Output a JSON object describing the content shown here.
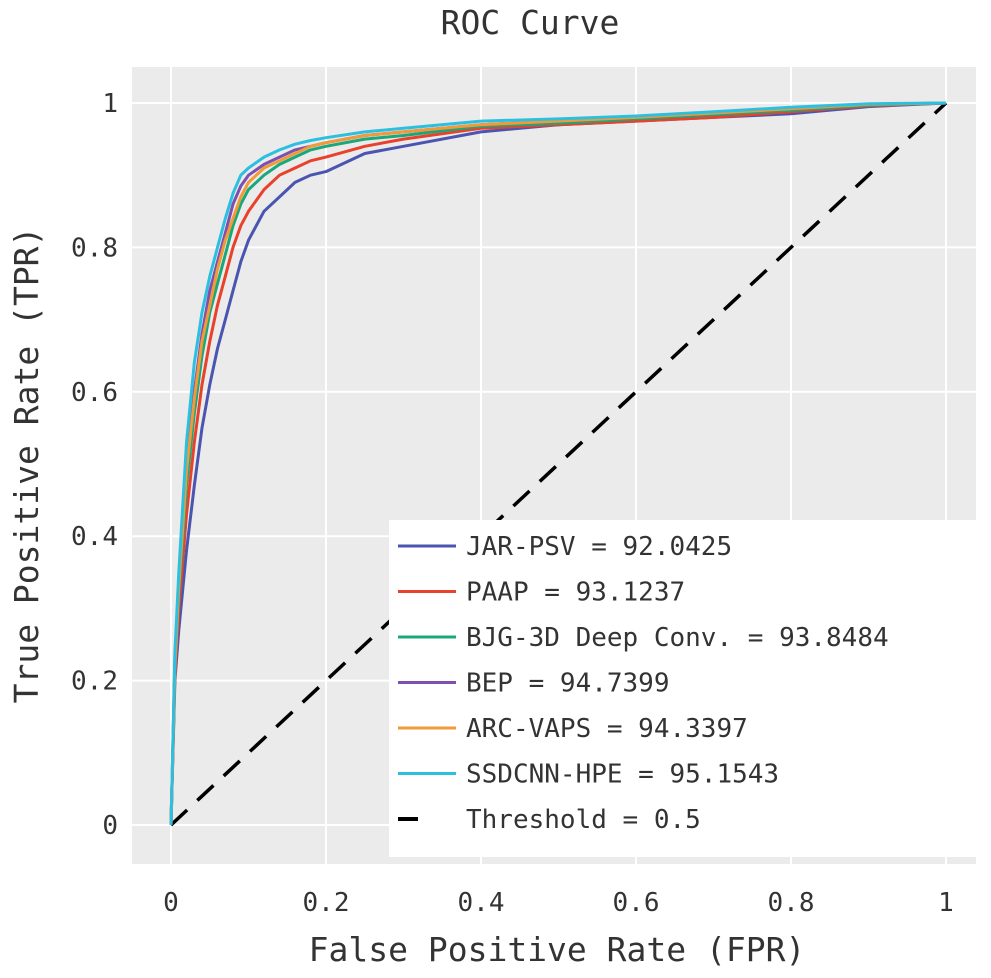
{
  "chart_data": {
    "type": "line",
    "title": "ROC Curve",
    "xlabel": "False Positive Rate (FPR)",
    "ylabel": "True Positive Rate (TPR)",
    "xlim": [
      0,
      1
    ],
    "ylim": [
      0,
      1
    ],
    "x_ticks": [
      "0",
      "0.2",
      "0.4",
      "0.6",
      "0.8",
      "1"
    ],
    "y_ticks": [
      "0",
      "0.2",
      "0.4",
      "0.6",
      "0.8",
      "1"
    ],
    "grid": true,
    "legend_position": "bottom-right",
    "series": [
      {
        "name": "JAR-PSV",
        "auc_label": "JAR-PSV = 92.0425",
        "color": "#4a55b0",
        "x": [
          0,
          0.005,
          0.01,
          0.02,
          0.03,
          0.04,
          0.05,
          0.06,
          0.07,
          0.08,
          0.09,
          0.1,
          0.12,
          0.14,
          0.16,
          0.18,
          0.2,
          0.25,
          0.3,
          0.4,
          0.5,
          0.6,
          0.7,
          0.8,
          0.9,
          1
        ],
        "y": [
          0,
          0.2,
          0.27,
          0.38,
          0.47,
          0.55,
          0.61,
          0.66,
          0.7,
          0.74,
          0.78,
          0.81,
          0.85,
          0.87,
          0.89,
          0.9,
          0.905,
          0.93,
          0.94,
          0.96,
          0.97,
          0.975,
          0.98,
          0.985,
          0.995,
          1
        ]
      },
      {
        "name": "PAAP",
        "auc_label": "PAAP = 93.1237",
        "color": "#e8412c",
        "x": [
          0,
          0.005,
          0.01,
          0.02,
          0.03,
          0.04,
          0.05,
          0.06,
          0.07,
          0.08,
          0.09,
          0.1,
          0.12,
          0.14,
          0.16,
          0.18,
          0.2,
          0.25,
          0.3,
          0.4,
          0.5,
          0.6,
          0.7,
          0.8,
          0.9,
          1
        ],
        "y": [
          0,
          0.21,
          0.3,
          0.43,
          0.53,
          0.61,
          0.67,
          0.72,
          0.76,
          0.8,
          0.83,
          0.85,
          0.88,
          0.9,
          0.91,
          0.92,
          0.925,
          0.94,
          0.95,
          0.965,
          0.97,
          0.975,
          0.98,
          0.988,
          0.996,
          1
        ]
      },
      {
        "name": "BJG-3D Deep Conv.",
        "auc_label": "BJG-3D Deep Conv. = 93.8484",
        "color": "#1aa87a",
        "x": [
          0,
          0.005,
          0.01,
          0.02,
          0.03,
          0.04,
          0.05,
          0.06,
          0.07,
          0.08,
          0.09,
          0.1,
          0.12,
          0.14,
          0.16,
          0.18,
          0.2,
          0.25,
          0.3,
          0.4,
          0.5,
          0.6,
          0.7,
          0.8,
          0.9,
          1
        ],
        "y": [
          0,
          0.22,
          0.32,
          0.47,
          0.57,
          0.65,
          0.71,
          0.75,
          0.79,
          0.83,
          0.86,
          0.88,
          0.9,
          0.915,
          0.925,
          0.935,
          0.94,
          0.95,
          0.955,
          0.968,
          0.972,
          0.978,
          0.984,
          0.99,
          0.997,
          1
        ]
      },
      {
        "name": "BEP",
        "auc_label": "BEP = 94.7399",
        "color": "#7d4fb0",
        "x": [
          0,
          0.005,
          0.01,
          0.02,
          0.03,
          0.04,
          0.05,
          0.06,
          0.07,
          0.08,
          0.09,
          0.1,
          0.12,
          0.14,
          0.16,
          0.18,
          0.2,
          0.25,
          0.3,
          0.4,
          0.5,
          0.6,
          0.7,
          0.8,
          0.9,
          1
        ],
        "y": [
          0,
          0.23,
          0.33,
          0.5,
          0.6,
          0.68,
          0.74,
          0.78,
          0.82,
          0.86,
          0.885,
          0.9,
          0.915,
          0.925,
          0.935,
          0.94,
          0.945,
          0.955,
          0.96,
          0.97,
          0.975,
          0.98,
          0.986,
          0.992,
          0.998,
          1
        ]
      },
      {
        "name": "ARC-VAPS",
        "auc_label": "ARC-VAPS = 94.3397",
        "color": "#f29a38",
        "x": [
          0,
          0.005,
          0.01,
          0.02,
          0.03,
          0.04,
          0.05,
          0.06,
          0.07,
          0.08,
          0.09,
          0.1,
          0.12,
          0.14,
          0.16,
          0.18,
          0.2,
          0.25,
          0.3,
          0.4,
          0.5,
          0.6,
          0.7,
          0.8,
          0.9,
          1
        ],
        "y": [
          0,
          0.22,
          0.33,
          0.49,
          0.59,
          0.67,
          0.72,
          0.77,
          0.81,
          0.84,
          0.87,
          0.89,
          0.91,
          0.92,
          0.93,
          0.94,
          0.945,
          0.955,
          0.96,
          0.97,
          0.975,
          0.98,
          0.986,
          0.992,
          0.998,
          1
        ]
      },
      {
        "name": "SSDCNN-HPE",
        "auc_label": "SSDCNN-HPE = 95.1543",
        "color": "#2cc0e0",
        "x": [
          0,
          0.005,
          0.01,
          0.02,
          0.03,
          0.04,
          0.05,
          0.06,
          0.07,
          0.08,
          0.09,
          0.1,
          0.12,
          0.14,
          0.16,
          0.18,
          0.2,
          0.25,
          0.3,
          0.4,
          0.5,
          0.6,
          0.7,
          0.8,
          0.9,
          1
        ],
        "y": [
          0,
          0.24,
          0.35,
          0.53,
          0.64,
          0.71,
          0.76,
          0.8,
          0.84,
          0.875,
          0.9,
          0.91,
          0.925,
          0.935,
          0.943,
          0.948,
          0.952,
          0.96,
          0.965,
          0.975,
          0.978,
          0.982,
          0.988,
          0.994,
          0.999,
          1
        ]
      }
    ],
    "threshold": {
      "label": "Threshold = 0.5",
      "color": "#000000",
      "x": [
        0,
        1
      ],
      "y": [
        0,
        1
      ]
    }
  }
}
